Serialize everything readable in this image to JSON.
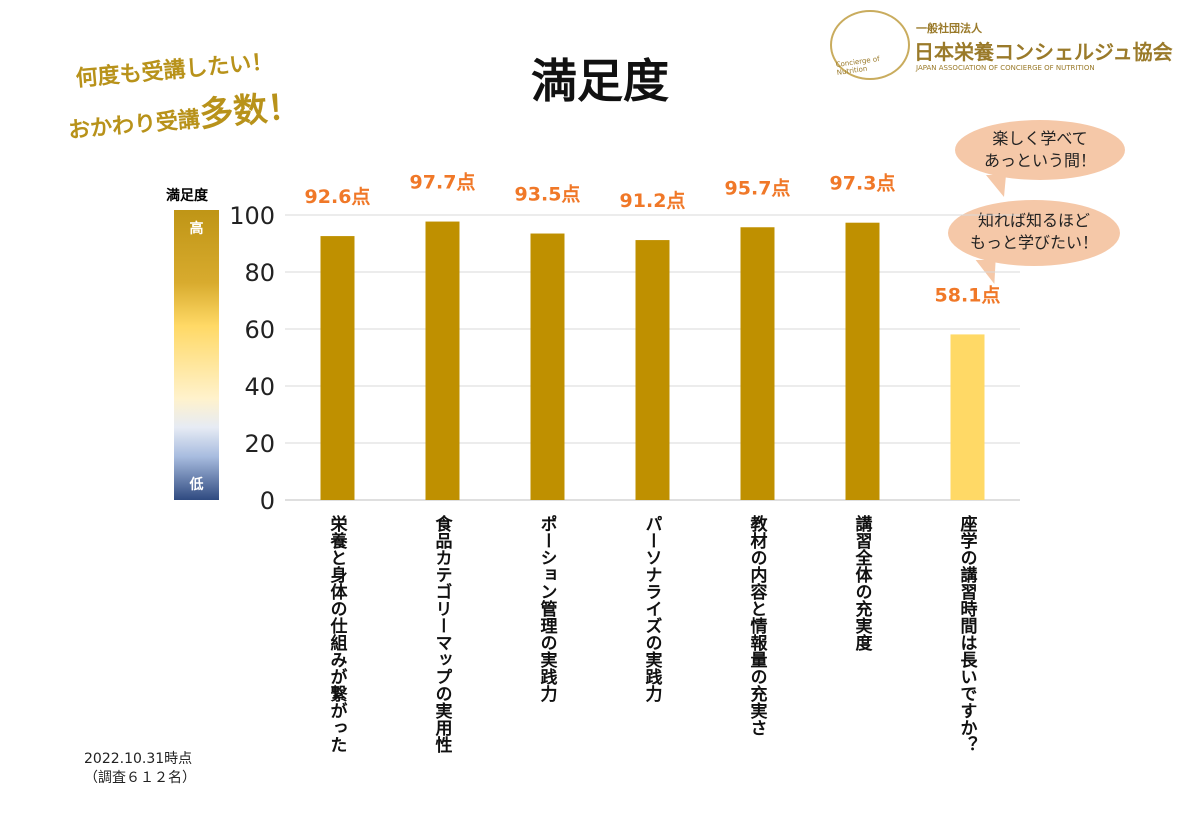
{
  "catchcopy": {
    "line1": "何度も受講したい！",
    "line2_prefix": "おかわり受講",
    "line2_emph": "多数！",
    "color": "#b8921a"
  },
  "logo": {
    "sub": "一般社団法人",
    "name": "日本栄養コンシェルジュ協会",
    "english": "JAPAN ASSOCIATION OF CONCIERGE OF NUTRITION",
    "emblem_text": "Concierge of Nutrition"
  },
  "bubbles": [
    {
      "line1": "楽しく学べて",
      "line2": "あっという間！"
    },
    {
      "line1": "知れば知るほど",
      "line2": "もっと学びたい！"
    }
  ],
  "legend": {
    "title": "満足度",
    "high": "高",
    "low": "低"
  },
  "footnote": {
    "date": "2022.10.31時点",
    "survey": "（調査６１２名）"
  },
  "chart_data": {
    "type": "bar",
    "title": "満足度",
    "categories": [
      "栄養と身体の仕組みが繋がった",
      "食品カテゴリーマップの実用性",
      "ポーション管理の実践力",
      "パーソナライズの実践力",
      "教材の内容と情報量の充実さ",
      "講習全体の充実度",
      "座学の講習時間は長いですか？"
    ],
    "values": [
      92.6,
      97.7,
      93.5,
      91.2,
      95.7,
      97.3,
      58.1
    ],
    "data_labels": [
      "92.6点",
      "97.7点",
      "93.5点",
      "91.2点",
      "95.7点",
      "97.3点",
      "58.1点"
    ],
    "bar_colors": [
      "#bf9000",
      "#bf9000",
      "#bf9000",
      "#bf9000",
      "#bf9000",
      "#bf9000",
      "#ffd966"
    ],
    "label_color": "#f07828",
    "ylim": [
      0,
      100
    ],
    "yticks": [
      0,
      20,
      40,
      60,
      80,
      100
    ],
    "grid": true
  }
}
